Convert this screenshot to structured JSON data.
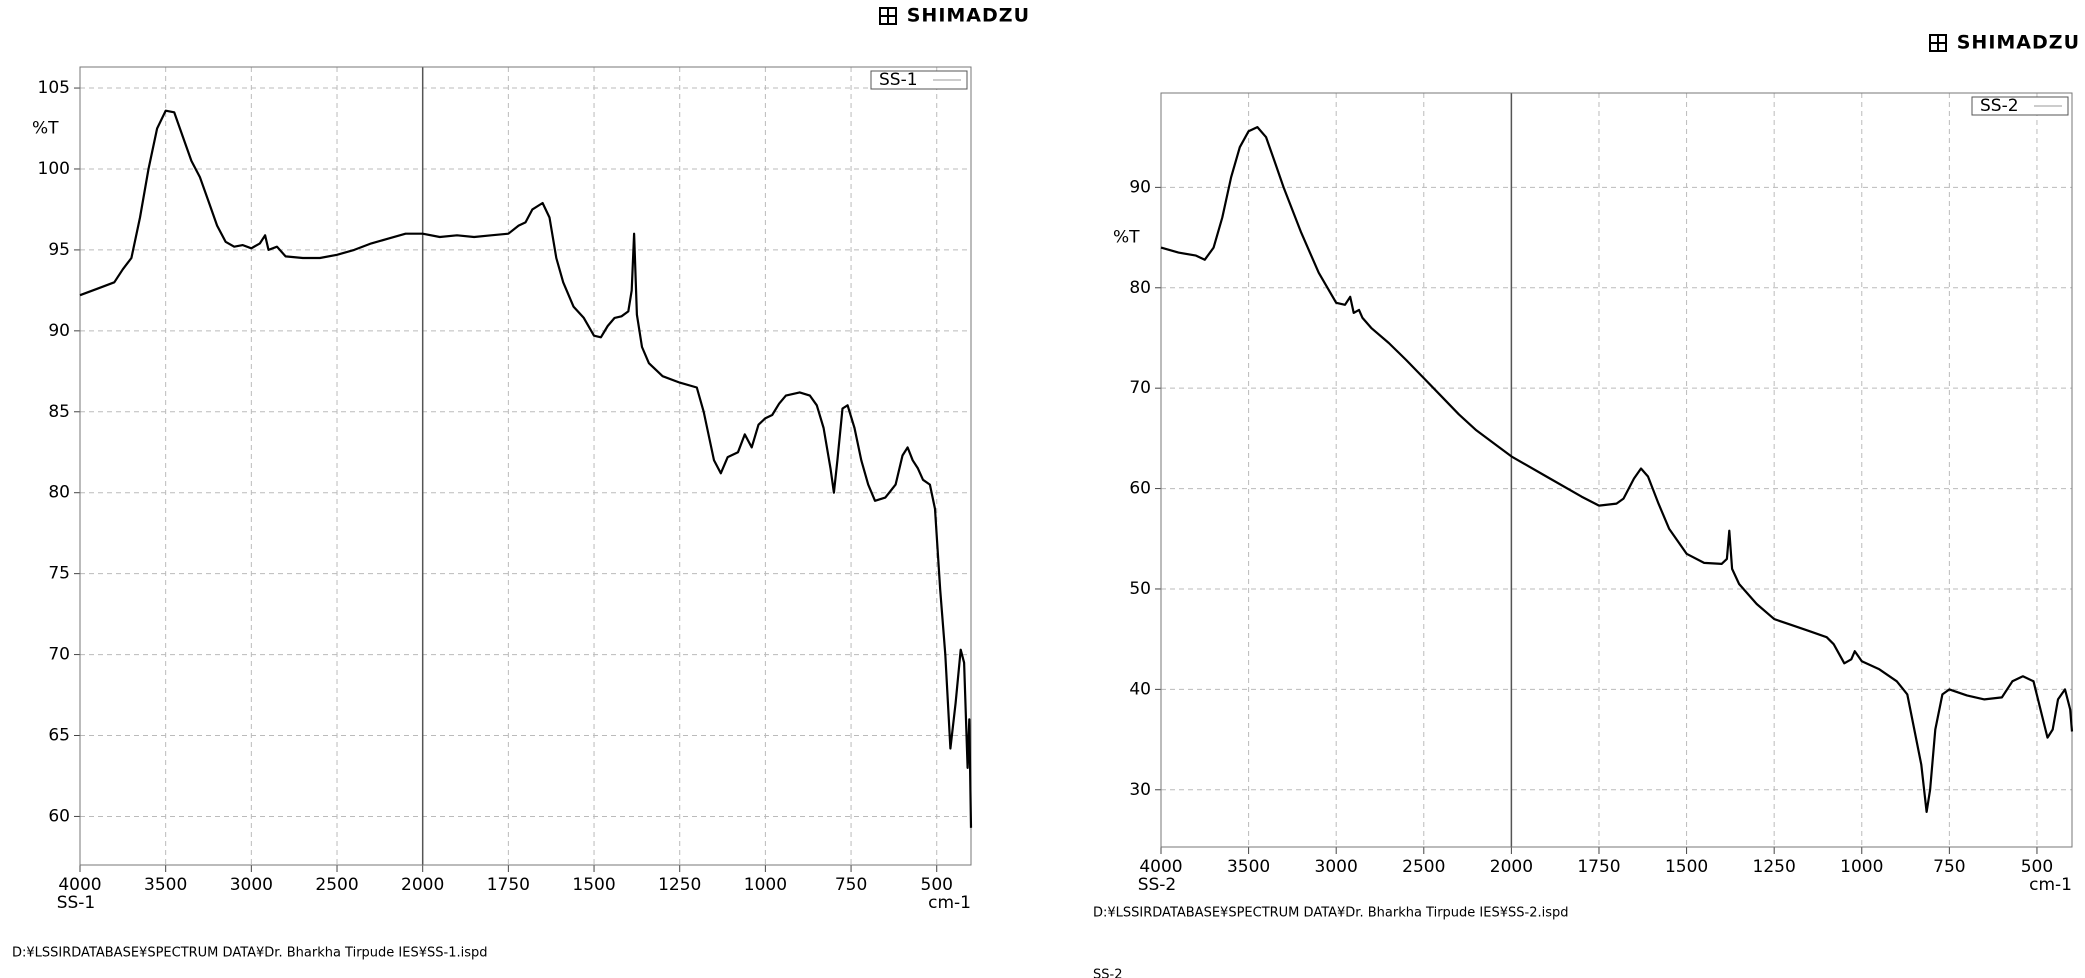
{
  "chart_data": [
    {
      "type": "line",
      "logo": "SHIMADZU",
      "legend_corner": "top-right",
      "ylabel": "%T",
      "xlabel": "cm-1",
      "sample_label": "SS-1",
      "file_path": "D:¥LSSIRDATABASE¥SPECTRUM DATA¥Dr. Bharkha Tirpude IES¥SS-1.ispd",
      "xlim": [
        4000,
        400
      ],
      "x_break": 2000,
      "ylim": [
        57,
        106.3
      ],
      "grid": true,
      "xticks": [
        4000,
        3500,
        3000,
        2500,
        2000,
        1750,
        1500,
        1250,
        1000,
        750,
        500
      ],
      "yticks": [
        60,
        65,
        70,
        75,
        80,
        85,
        90,
        95,
        100,
        105
      ],
      "x": [
        4000,
        3900,
        3800,
        3750,
        3700,
        3650,
        3600,
        3550,
        3500,
        3450,
        3400,
        3350,
        3300,
        3250,
        3200,
        3150,
        3100,
        3050,
        3000,
        2950,
        2920,
        2900,
        2850,
        2800,
        2700,
        2600,
        2500,
        2400,
        2300,
        2200,
        2100,
        2000,
        1950,
        1900,
        1850,
        1800,
        1750,
        1720,
        1700,
        1680,
        1650,
        1630,
        1610,
        1590,
        1560,
        1530,
        1500,
        1480,
        1460,
        1440,
        1420,
        1400,
        1390,
        1383,
        1375,
        1360,
        1340,
        1300,
        1250,
        1200,
        1180,
        1150,
        1130,
        1110,
        1080,
        1060,
        1040,
        1020,
        1000,
        980,
        960,
        940,
        900,
        870,
        850,
        830,
        810,
        800,
        790,
        775,
        760,
        740,
        720,
        700,
        680,
        650,
        620,
        600,
        585,
        570,
        555,
        540,
        520,
        505,
        490,
        475,
        460,
        445,
        430,
        420,
        410,
        405,
        400
      ],
      "series": [
        {
          "name": "SS-1",
          "color": "#000000",
          "values": [
            92.2,
            92.6,
            93.0,
            93.8,
            94.5,
            97,
            100,
            102.5,
            103.6,
            103.5,
            102,
            100.5,
            99.5,
            98,
            96.5,
            95.5,
            95.2,
            95.3,
            95.1,
            95.4,
            95.9,
            95.0,
            95.2,
            94.6,
            94.5,
            94.5,
            94.7,
            95.0,
            95.4,
            95.7,
            96.0,
            96.0,
            95.8,
            95.9,
            95.8,
            95.9,
            96.0,
            96.5,
            96.7,
            97.5,
            97.9,
            97.0,
            94.5,
            93,
            91.5,
            90.8,
            89.7,
            89.6,
            90.3,
            90.8,
            90.9,
            91.2,
            92.5,
            96.0,
            91,
            89.0,
            88.0,
            87.2,
            86.8,
            86.5,
            85.0,
            82,
            81.2,
            82.2,
            82.5,
            83.6,
            82.8,
            84.2,
            84.6,
            84.8,
            85.5,
            86.0,
            86.2,
            86.0,
            85.4,
            84.0,
            81.5,
            80.0,
            82,
            85.2,
            85.4,
            84.0,
            82.0,
            80.5,
            79.5,
            79.7,
            80.5,
            82.3,
            82.8,
            82.0,
            81.5,
            80.8,
            80.5,
            79,
            74,
            70,
            64.2,
            67,
            70.3,
            69.5,
            63,
            66,
            59.3
          ]
        }
      ]
    },
    {
      "type": "line",
      "logo": "SHIMADZU",
      "legend_corner": "top-right",
      "ylabel": "%T",
      "xlabel": "cm-1",
      "sample_label": "SS-2",
      "file_path": "D:¥LSSIRDATABASE¥SPECTRUM DATA¥Dr. Bharkha Tirpude IES¥SS-2.ispd",
      "footer": "SS-2",
      "xlim": [
        4000,
        400
      ],
      "x_break": 2000,
      "ylim": [
        24.3,
        99.4
      ],
      "grid": true,
      "xticks": [
        4000,
        3500,
        3000,
        2500,
        2000,
        1750,
        1500,
        1250,
        1000,
        750,
        500
      ],
      "yticks": [
        30,
        40,
        50,
        60,
        70,
        80,
        90
      ],
      "x": [
        4000,
        3900,
        3800,
        3750,
        3700,
        3650,
        3600,
        3550,
        3500,
        3450,
        3400,
        3350,
        3300,
        3200,
        3100,
        3000,
        2950,
        2920,
        2900,
        2870,
        2850,
        2800,
        2700,
        2600,
        2500,
        2400,
        2300,
        2200,
        2100,
        2000,
        1900,
        1800,
        1750,
        1700,
        1680,
        1650,
        1630,
        1610,
        1580,
        1550,
        1500,
        1450,
        1400,
        1385,
        1378,
        1370,
        1350,
        1300,
        1250,
        1200,
        1150,
        1100,
        1080,
        1050,
        1030,
        1020,
        1000,
        950,
        900,
        870,
        850,
        830,
        815,
        805,
        790,
        770,
        750,
        700,
        650,
        600,
        570,
        540,
        510,
        490,
        470,
        455,
        440,
        420,
        405,
        400
      ],
      "series": [
        {
          "name": "SS-2",
          "color": "#000000",
          "values": [
            84.0,
            83.5,
            83.2,
            82.8,
            84,
            87,
            91,
            94,
            95.6,
            96.0,
            95,
            92.5,
            90,
            85.5,
            81.5,
            78.5,
            78.3,
            79.1,
            77.5,
            77.8,
            77.0,
            76.0,
            74.5,
            72.8,
            71.0,
            69.2,
            67.4,
            65.8,
            64.5,
            63.2,
            61.2,
            59.2,
            58.3,
            58.5,
            59.0,
            61.0,
            62.0,
            61.2,
            58.5,
            56,
            53.5,
            52.6,
            52.5,
            53,
            55.8,
            52,
            50.5,
            48.5,
            47.0,
            46.4,
            45.8,
            45.2,
            44.5,
            42.6,
            43.0,
            43.8,
            42.8,
            42.0,
            40.8,
            39.5,
            36.0,
            32.5,
            27.8,
            30,
            36,
            39.5,
            40.0,
            39.4,
            39.0,
            39.2,
            40.8,
            41.3,
            40.8,
            38,
            35.2,
            36,
            39.0,
            40.0,
            38,
            35.8
          ]
        }
      ]
    }
  ]
}
